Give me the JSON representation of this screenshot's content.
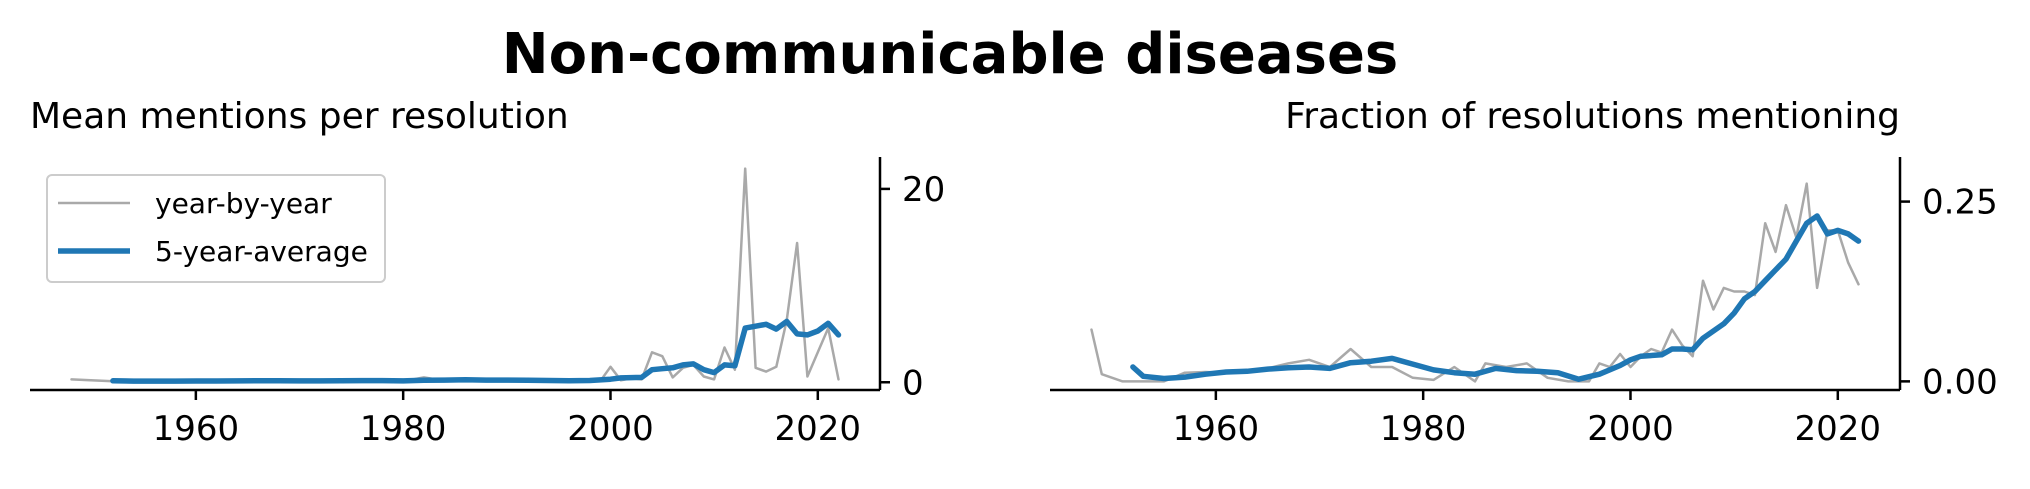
{
  "title": "Non-communicable diseases",
  "chart_data": [
    {
      "type": "line",
      "title": "Mean mentions per resolution",
      "xlabel": "",
      "ylabel": "",
      "xlim": [
        1944,
        2026
      ],
      "ylim": [
        -0.8,
        23.3
      ],
      "xticks": [
        "1960",
        "1980",
        "2000",
        "2020"
      ],
      "yticks": [
        "0",
        "20"
      ],
      "y_axis_side": "right",
      "legend_position": "top-left",
      "colors": {
        "year-by-year": "#a9a9a9",
        "5-year-average": "#1f77b4"
      },
      "series": [
        {
          "name": "year-by-year",
          "x": [
            1948,
            1952,
            1954,
            1956,
            1958,
            1960,
            1962,
            1964,
            1966,
            1968,
            1970,
            1972,
            1974,
            1976,
            1978,
            1980,
            1982,
            1984,
            1986,
            1988,
            1990,
            1992,
            1994,
            1996,
            1998,
            1999,
            2000,
            2001,
            2002,
            2003,
            2004,
            2005,
            2006,
            2007,
            2008,
            2009,
            2010,
            2011,
            2012,
            2013,
            2014,
            2015,
            2016,
            2017,
            2018,
            2019,
            2020,
            2021,
            2022
          ],
          "values": [
            0.3,
            0.1,
            0.1,
            0.1,
            0.1,
            0.1,
            0.15,
            0.1,
            0.2,
            0.15,
            0.1,
            0.15,
            0.2,
            0.2,
            0.15,
            0.1,
            0.5,
            0.15,
            0.3,
            0.2,
            0.25,
            0.2,
            0.15,
            0.1,
            0.2,
            0.1,
            1.6,
            0.2,
            0.4,
            0.3,
            3.1,
            2.7,
            0.5,
            1.5,
            1.8,
            0.6,
            0.3,
            3.6,
            1.3,
            22.1,
            1.5,
            1.1,
            1.6,
            6.4,
            14.4,
            0.6,
            3.1,
            5.6,
            0.3
          ]
        },
        {
          "name": "5-year-average",
          "x": [
            1952,
            1954,
            1956,
            1958,
            1960,
            1962,
            1964,
            1966,
            1968,
            1970,
            1972,
            1974,
            1976,
            1978,
            1980,
            1982,
            1984,
            1986,
            1988,
            1990,
            1992,
            1994,
            1996,
            1998,
            2000,
            2001,
            2002,
            2003,
            2004,
            2005,
            2006,
            2007,
            2008,
            2009,
            2010,
            2011,
            2012,
            2013,
            2014,
            2015,
            2016,
            2017,
            2018,
            2019,
            2020,
            2021,
            2022
          ],
          "values": [
            0.15,
            0.12,
            0.12,
            0.12,
            0.13,
            0.13,
            0.14,
            0.16,
            0.16,
            0.14,
            0.14,
            0.15,
            0.17,
            0.17,
            0.14,
            0.2,
            0.22,
            0.25,
            0.22,
            0.22,
            0.2,
            0.18,
            0.16,
            0.18,
            0.32,
            0.45,
            0.48,
            0.5,
            1.3,
            1.4,
            1.5,
            1.8,
            1.9,
            1.3,
            1.0,
            1.8,
            1.7,
            5.6,
            5.8,
            6.0,
            5.5,
            6.3,
            5.0,
            4.9,
            5.3,
            6.1,
            4.9
          ]
        }
      ]
    },
    {
      "type": "line",
      "title": "Fraction of resolutions mentioning",
      "xlabel": "",
      "ylabel": "",
      "xlim": [
        1944,
        2026
      ],
      "ylim": [
        -0.012,
        0.312
      ],
      "xticks": [
        "1960",
        "1980",
        "2000",
        "2020"
      ],
      "yticks": [
        "0.00",
        "0.25"
      ],
      "y_axis_side": "right",
      "colors": {
        "year-by-year": "#a9a9a9",
        "5-year-average": "#1f77b4"
      },
      "series": [
        {
          "name": "year-by-year",
          "x": [
            1948,
            1949,
            1951,
            1953,
            1955,
            1957,
            1959,
            1961,
            1963,
            1965,
            1967,
            1969,
            1971,
            1973,
            1975,
            1977,
            1979,
            1981,
            1983,
            1985,
            1986,
            1988,
            1990,
            1992,
            1994,
            1996,
            1997,
            1998,
            1999,
            2000,
            2001,
            2002,
            2003,
            2004,
            2005,
            2006,
            2007,
            2008,
            2009,
            2010,
            2011,
            2012,
            2013,
            2014,
            2015,
            2016,
            2017,
            2018,
            2019,
            2020,
            2021,
            2022
          ],
          "values": [
            0.072,
            0.01,
            0.0,
            0.0,
            0.0,
            0.012,
            0.013,
            0.012,
            0.015,
            0.018,
            0.025,
            0.03,
            0.02,
            0.045,
            0.02,
            0.02,
            0.005,
            0.002,
            0.02,
            0.0,
            0.025,
            0.02,
            0.025,
            0.005,
            0.0,
            0.0,
            0.025,
            0.02,
            0.038,
            0.02,
            0.035,
            0.045,
            0.04,
            0.072,
            0.05,
            0.035,
            0.14,
            0.1,
            0.13,
            0.125,
            0.125,
            0.12,
            0.22,
            0.18,
            0.245,
            0.2,
            0.275,
            0.13,
            0.21,
            0.21,
            0.165,
            0.135
          ]
        },
        {
          "name": "5-year-average",
          "x": [
            1952,
            1953,
            1955,
            1957,
            1959,
            1961,
            1963,
            1965,
            1967,
            1969,
            1971,
            1973,
            1975,
            1977,
            1979,
            1981,
            1983,
            1985,
            1987,
            1989,
            1991,
            1993,
            1995,
            1997,
            1999,
            2000,
            2001,
            2003,
            2004,
            2005,
            2006,
            2007,
            2009,
            2010,
            2011,
            2012,
            2013,
            2014,
            2015,
            2016,
            2017,
            2018,
            2019,
            2020,
            2021,
            2022
          ],
          "values": [
            0.02,
            0.007,
            0.004,
            0.006,
            0.01,
            0.013,
            0.014,
            0.017,
            0.019,
            0.02,
            0.018,
            0.026,
            0.028,
            0.032,
            0.024,
            0.016,
            0.012,
            0.01,
            0.018,
            0.015,
            0.014,
            0.012,
            0.003,
            0.01,
            0.022,
            0.03,
            0.035,
            0.037,
            0.045,
            0.045,
            0.044,
            0.06,
            0.08,
            0.095,
            0.115,
            0.125,
            0.14,
            0.155,
            0.17,
            0.195,
            0.22,
            0.23,
            0.205,
            0.21,
            0.205,
            0.195
          ]
        }
      ]
    }
  ]
}
